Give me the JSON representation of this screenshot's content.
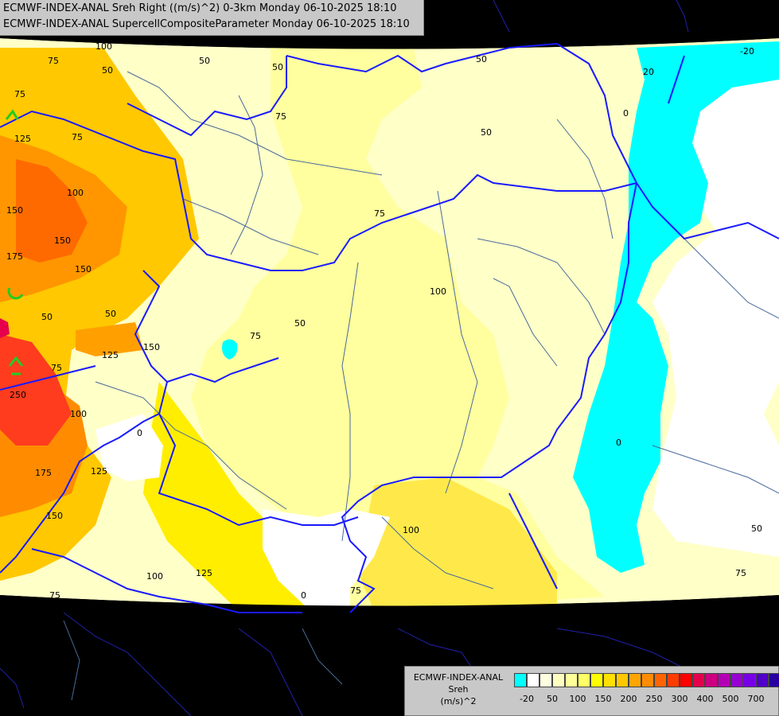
{
  "titles": {
    "line1": "ECMWF-INDEX-ANAL Sreh Right ((m/s)^2) 0-3km Monday 06-10-2025 18:10",
    "line2": "ECMWF-INDEX-ANAL SupercellCompositeParameter Monday 06-10-2025 18:10"
  },
  "legend": {
    "line1": "ECMWF-INDEX-ANAL",
    "line2": "Sreh",
    "line3": "(m/s)^2",
    "colors": [
      "#00ffff",
      "#ffffff",
      "#ffffe0",
      "#ffffc0",
      "#ffff99",
      "#ffff66",
      "#ffff00",
      "#ffe000",
      "#ffc800",
      "#ffa500",
      "#ff8c00",
      "#ff6400",
      "#ff3c00",
      "#ff0000",
      "#e6004c",
      "#cc0080",
      "#b400b4",
      "#9600d2",
      "#7800e6",
      "#5000c8",
      "#2800a0"
    ],
    "ticks": [
      "-20",
      "50",
      "100",
      "150",
      "200",
      "250",
      "300",
      "400",
      "500",
      "700"
    ]
  },
  "contour_labels": [
    "75",
    "50",
    "50",
    "50",
    "75",
    "50",
    "50",
    "-20",
    "20",
    "0",
    "75",
    "75",
    "100",
    "150",
    "150",
    "175",
    "125",
    "150",
    "50",
    "50",
    "75",
    "100",
    "50",
    "75",
    "125",
    "150",
    "250",
    "75",
    "100",
    "0",
    "175",
    "125",
    "150",
    "100",
    "125",
    "75",
    "100",
    "0",
    "75",
    "100",
    "0",
    "50",
    "75"
  ],
  "colors": {
    "background": "#000000",
    "domain_fill": "#ffffc8",
    "border": "#1a1aff",
    "river": "#5070a0",
    "cyan": "#00ffff",
    "white": "#ffffff"
  }
}
